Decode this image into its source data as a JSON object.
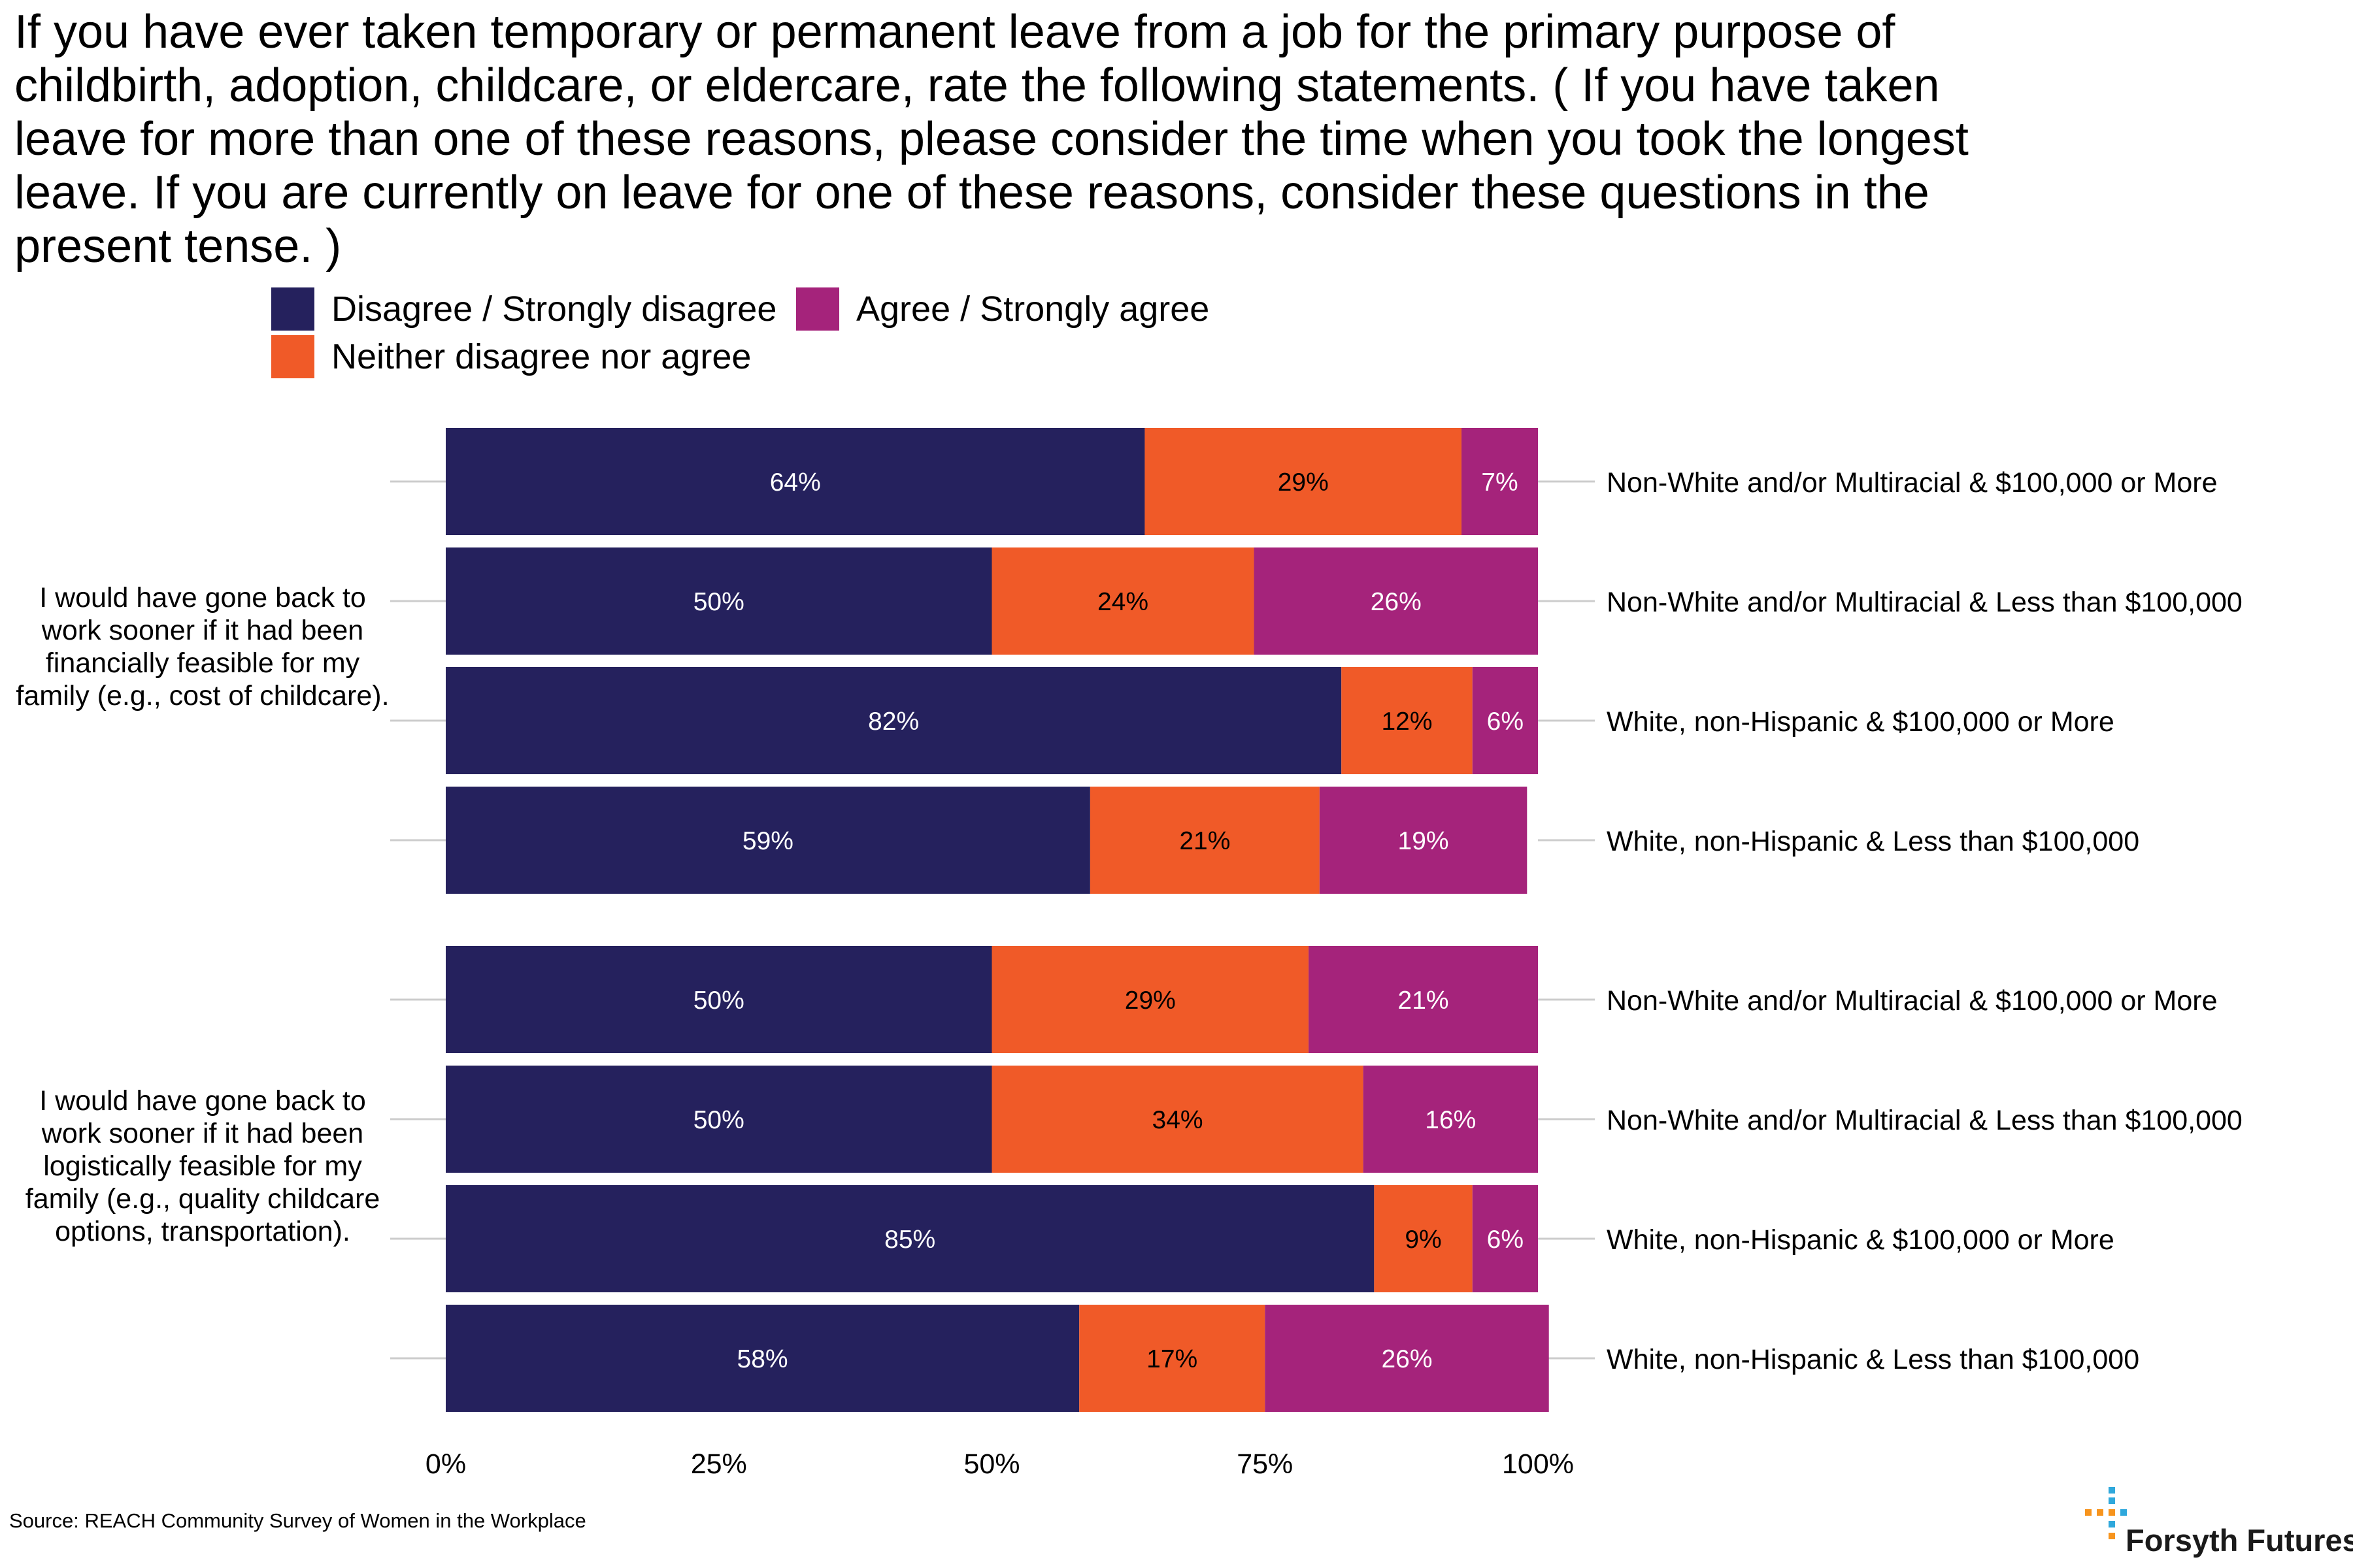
{
  "title": "If you have ever taken temporary or permanent leave from a job for the primary purpose of childbirth, adoption, childcare, or eldercare, rate the following statements. ( If you have taken leave for more than one of these reasons, please consider the time when you took the longest leave. If you are currently on leave for one of these reasons, consider these questions in the present tense. )",
  "source": "Source: REACH Community Survey of Women in the Workplace",
  "logo_text": "Forsyth Futures",
  "colors": {
    "disagree": "#25215d",
    "neither": "#f05a28",
    "agree": "#a5237b",
    "gridline": "#cccccc",
    "logo_blue": "#2fa8dc",
    "logo_orange": "#f7941d"
  },
  "legend": [
    {
      "key": "disagree",
      "label": "Disagree / Strongly disagree"
    },
    {
      "key": "agree",
      "label": "Agree / Strongly agree"
    },
    {
      "key": "neither",
      "label": "Neither disagree nor agree"
    }
  ],
  "chart_data": {
    "type": "bar",
    "orientation": "horizontal",
    "stacked": true,
    "xlim": [
      0,
      100
    ],
    "xticks": [
      "0%",
      "25%",
      "50%",
      "75%",
      "100%"
    ],
    "series_order": [
      "disagree",
      "neither",
      "agree"
    ],
    "groups": [
      {
        "question": "I would have gone back to work sooner if it had been financially feasible for my family (e.g., cost of childcare).",
        "rows": [
          {
            "category": "Non-White and/or Multiracial & $100,000 or More",
            "values": [
              64,
              29,
              7
            ],
            "labels": [
              "64%",
              "29%",
              "7%"
            ]
          },
          {
            "category": "Non-White and/or Multiracial & Less than $100,000",
            "values": [
              50,
              24,
              26
            ],
            "labels": [
              "50%",
              "24%",
              "26%"
            ]
          },
          {
            "category": "White, non-Hispanic & $100,000 or More",
            "values": [
              82,
              12,
              6
            ],
            "labels": [
              "82%",
              "12%",
              "6%"
            ]
          },
          {
            "category": "White, non-Hispanic & Less than $100,000",
            "values": [
              59,
              21,
              19
            ],
            "labels": [
              "59%",
              "21%",
              "19%"
            ]
          }
        ]
      },
      {
        "question": "I would have gone back to work sooner if it had been logistically feasible for my family (e.g., quality childcare options, transportation).",
        "rows": [
          {
            "category": "Non-White and/or Multiracial & $100,000 or More",
            "values": [
              50,
              29,
              21
            ],
            "labels": [
              "50%",
              "29%",
              "21%"
            ]
          },
          {
            "category": "Non-White and/or Multiracial & Less than $100,000",
            "values": [
              50,
              34,
              16
            ],
            "labels": [
              "50%",
              "34%",
              "16%"
            ]
          },
          {
            "category": "White, non-Hispanic & $100,000 or More",
            "values": [
              85,
              9,
              6
            ],
            "labels": [
              "85%",
              "9%",
              "6%"
            ]
          },
          {
            "category": "White, non-Hispanic & Less than $100,000",
            "values": [
              58,
              17,
              26
            ],
            "labels": [
              "58%",
              "17%",
              "26%"
            ]
          }
        ]
      }
    ]
  }
}
